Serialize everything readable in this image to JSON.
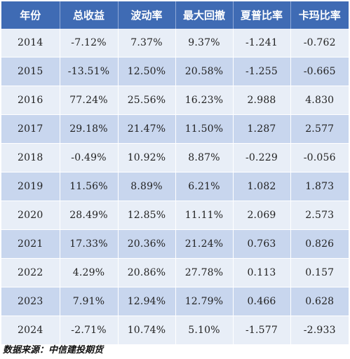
{
  "table": {
    "headers": [
      "年份",
      "总收益",
      "波动率",
      "最大回撤",
      "夏普比率",
      "卡玛比率"
    ],
    "rows": [
      [
        "2014",
        "-7.12%",
        "7.37%",
        "9.37%",
        "-1.241",
        "-0.762"
      ],
      [
        "2015",
        "-13.51%",
        "12.50%",
        "20.58%",
        "-1.255",
        "-0.665"
      ],
      [
        "2016",
        "77.24%",
        "25.56%",
        "16.23%",
        "2.988",
        "4.830"
      ],
      [
        "2017",
        "29.18%",
        "21.47%",
        "11.50%",
        "1.287",
        "2.577"
      ],
      [
        "2018",
        "-0.49%",
        "10.92%",
        "8.87%",
        "-0.229",
        "-0.056"
      ],
      [
        "2019",
        "11.56%",
        "8.89%",
        "6.21%",
        "1.082",
        "1.873"
      ],
      [
        "2020",
        "28.49%",
        "12.85%",
        "11.11%",
        "2.069",
        "2.573"
      ],
      [
        "2021",
        "17.33%",
        "20.36%",
        "21.24%",
        "0.763",
        "0.826"
      ],
      [
        "2022",
        "4.29%",
        "20.86%",
        "27.78%",
        "0.113",
        "0.157"
      ],
      [
        "2023",
        "7.91%",
        "12.94%",
        "12.79%",
        "0.466",
        "0.628"
      ],
      [
        "2024",
        "-2.71%",
        "10.74%",
        "5.10%",
        "-1.577",
        "-2.933"
      ]
    ]
  },
  "source": "数据来源：中信建投期货",
  "colors": {
    "header_bg": "#3F6BB4",
    "row_light": "#E8EEF7",
    "row_dark": "#C8D6EE"
  }
}
